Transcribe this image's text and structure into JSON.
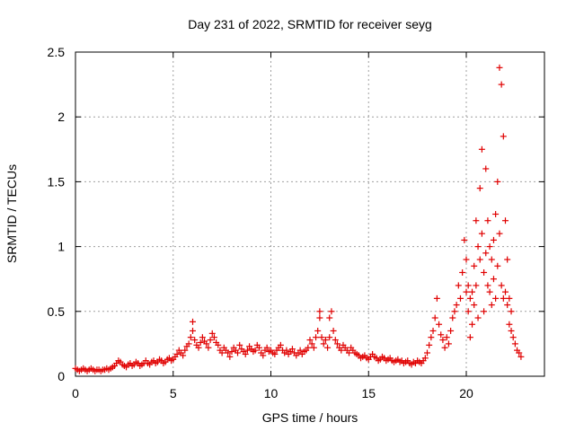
{
  "chart_data": {
    "type": "scatter",
    "title": "Day 231 of 2022, SRMTID for receiver seyg",
    "xlabel": "GPS time / hours",
    "ylabel": "SRMTID / TECUs",
    "xlim": [
      0,
      24
    ],
    "ylim": [
      0,
      2.5
    ],
    "x_ticks": [
      0,
      5,
      10,
      15,
      20
    ],
    "x_tick_labels": [
      "0",
      "5",
      "10",
      "15",
      "20"
    ],
    "y_ticks": [
      0,
      0.5,
      1,
      1.5,
      2,
      2.5
    ],
    "y_tick_labels": [
      "0",
      "0.5",
      "1",
      "1.5",
      "2",
      "2.5"
    ],
    "grid": true,
    "marker": "+",
    "series": [
      {
        "name": "SRMTID",
        "color": "#e00000",
        "x": [
          0.0,
          0.1,
          0.2,
          0.3,
          0.4,
          0.5,
          0.6,
          0.7,
          0.8,
          0.9,
          1.0,
          1.1,
          1.2,
          1.3,
          1.4,
          1.5,
          1.6,
          1.7,
          1.8,
          1.9,
          2.0,
          2.1,
          2.2,
          2.3,
          2.4,
          2.5,
          2.6,
          2.7,
          2.8,
          2.9,
          3.0,
          3.1,
          3.2,
          3.3,
          3.4,
          3.5,
          3.6,
          3.7,
          3.8,
          3.9,
          4.0,
          4.1,
          4.2,
          4.3,
          4.4,
          4.5,
          4.6,
          4.7,
          4.8,
          4.9,
          5.0,
          5.1,
          5.2,
          5.3,
          5.4,
          5.5,
          5.6,
          5.7,
          5.8,
          5.9,
          6.0,
          6.0,
          6.1,
          6.2,
          6.3,
          6.4,
          6.5,
          6.6,
          6.7,
          6.8,
          6.9,
          7.0,
          7.1,
          7.2,
          7.3,
          7.4,
          7.5,
          7.6,
          7.7,
          7.8,
          7.9,
          8.0,
          8.1,
          8.2,
          8.3,
          8.4,
          8.5,
          8.6,
          8.7,
          8.8,
          8.9,
          9.0,
          9.1,
          9.2,
          9.3,
          9.4,
          9.5,
          9.6,
          9.7,
          9.8,
          9.9,
          10.0,
          10.1,
          10.2,
          10.3,
          10.4,
          10.5,
          10.6,
          10.7,
          10.8,
          10.9,
          11.0,
          11.1,
          11.2,
          11.3,
          11.4,
          11.5,
          11.6,
          11.7,
          11.8,
          11.9,
          12.0,
          12.1,
          12.2,
          12.3,
          12.4,
          12.5,
          12.5,
          12.6,
          12.7,
          12.8,
          12.9,
          13.0,
          13.0,
          13.1,
          13.2,
          13.3,
          13.4,
          13.5,
          13.6,
          13.7,
          13.8,
          13.9,
          14.0,
          14.1,
          14.2,
          14.3,
          14.4,
          14.5,
          14.6,
          14.7,
          14.8,
          14.9,
          15.0,
          15.1,
          15.2,
          15.3,
          15.4,
          15.5,
          15.6,
          15.7,
          15.8,
          15.9,
          16.0,
          16.1,
          16.2,
          16.3,
          16.4,
          16.5,
          16.6,
          16.7,
          16.8,
          16.9,
          17.0,
          17.1,
          17.2,
          17.3,
          17.4,
          17.5,
          17.6,
          17.7,
          17.8,
          17.9,
          18.0,
          18.1,
          18.2,
          18.3,
          18.4,
          18.5,
          18.6,
          18.7,
          18.8,
          18.9,
          19.0,
          19.1,
          19.2,
          19.3,
          19.4,
          19.5,
          19.6,
          19.7,
          19.8,
          19.9,
          20.0,
          20.0,
          20.1,
          20.1,
          20.2,
          20.2,
          20.3,
          20.3,
          20.4,
          20.4,
          20.5,
          20.5,
          20.6,
          20.6,
          20.7,
          20.7,
          20.8,
          20.8,
          20.9,
          20.9,
          21.0,
          21.0,
          21.1,
          21.1,
          21.2,
          21.2,
          21.3,
          21.3,
          21.4,
          21.4,
          21.5,
          21.5,
          21.6,
          21.6,
          21.7,
          21.7,
          21.8,
          21.8,
          21.9,
          21.9,
          22.0,
          22.0,
          22.1,
          22.1,
          22.2,
          22.2,
          22.3,
          22.3,
          22.4,
          22.5,
          22.6,
          22.7,
          22.8
        ],
        "y": [
          0.06,
          0.05,
          0.04,
          0.05,
          0.06,
          0.05,
          0.04,
          0.05,
          0.06,
          0.05,
          0.04,
          0.05,
          0.05,
          0.04,
          0.05,
          0.05,
          0.06,
          0.05,
          0.06,
          0.07,
          0.08,
          0.1,
          0.12,
          0.11,
          0.09,
          0.08,
          0.07,
          0.09,
          0.1,
          0.08,
          0.09,
          0.11,
          0.1,
          0.08,
          0.09,
          0.1,
          0.12,
          0.1,
          0.09,
          0.11,
          0.12,
          0.1,
          0.11,
          0.13,
          0.12,
          0.1,
          0.11,
          0.13,
          0.14,
          0.12,
          0.13,
          0.15,
          0.17,
          0.2,
          0.18,
          0.16,
          0.2,
          0.23,
          0.25,
          0.3,
          0.42,
          0.35,
          0.28,
          0.24,
          0.22,
          0.26,
          0.3,
          0.27,
          0.25,
          0.22,
          0.28,
          0.33,
          0.3,
          0.26,
          0.24,
          0.2,
          0.18,
          0.22,
          0.2,
          0.18,
          0.15,
          0.19,
          0.22,
          0.2,
          0.18,
          0.24,
          0.21,
          0.19,
          0.17,
          0.2,
          0.23,
          0.21,
          0.19,
          0.2,
          0.24,
          0.22,
          0.18,
          0.16,
          0.2,
          0.22,
          0.19,
          0.2,
          0.18,
          0.17,
          0.2,
          0.22,
          0.24,
          0.2,
          0.18,
          0.2,
          0.17,
          0.19,
          0.21,
          0.18,
          0.16,
          0.18,
          0.2,
          0.17,
          0.19,
          0.2,
          0.22,
          0.28,
          0.25,
          0.22,
          0.3,
          0.35,
          0.45,
          0.5,
          0.3,
          0.25,
          0.28,
          0.22,
          0.3,
          0.45,
          0.5,
          0.35,
          0.28,
          0.25,
          0.22,
          0.2,
          0.24,
          0.22,
          0.2,
          0.18,
          0.22,
          0.2,
          0.18,
          0.17,
          0.16,
          0.14,
          0.15,
          0.16,
          0.14,
          0.13,
          0.15,
          0.17,
          0.15,
          0.14,
          0.12,
          0.13,
          0.15,
          0.14,
          0.12,
          0.13,
          0.14,
          0.12,
          0.11,
          0.12,
          0.13,
          0.11,
          0.12,
          0.1,
          0.11,
          0.12,
          0.1,
          0.09,
          0.11,
          0.1,
          0.12,
          0.11,
          0.1,
          0.12,
          0.14,
          0.18,
          0.24,
          0.3,
          0.35,
          0.45,
          0.6,
          0.4,
          0.32,
          0.28,
          0.22,
          0.3,
          0.25,
          0.35,
          0.45,
          0.5,
          0.55,
          0.7,
          0.6,
          0.8,
          1.05,
          0.9,
          0.65,
          0.7,
          0.5,
          0.6,
          0.3,
          0.65,
          0.4,
          0.85,
          0.55,
          1.2,
          0.7,
          1.0,
          0.45,
          1.45,
          0.9,
          1.75,
          1.1,
          0.8,
          0.5,
          1.6,
          0.95,
          1.2,
          0.7,
          1.0,
          0.65,
          0.9,
          0.55,
          1.05,
          0.75,
          1.25,
          0.6,
          1.5,
          0.85,
          2.38,
          1.1,
          2.25,
          0.7,
          1.85,
          0.6,
          1.2,
          0.65,
          0.9,
          0.55,
          0.6,
          0.4,
          0.5,
          0.35,
          0.3,
          0.25,
          0.2,
          0.18,
          0.15
        ]
      }
    ]
  }
}
